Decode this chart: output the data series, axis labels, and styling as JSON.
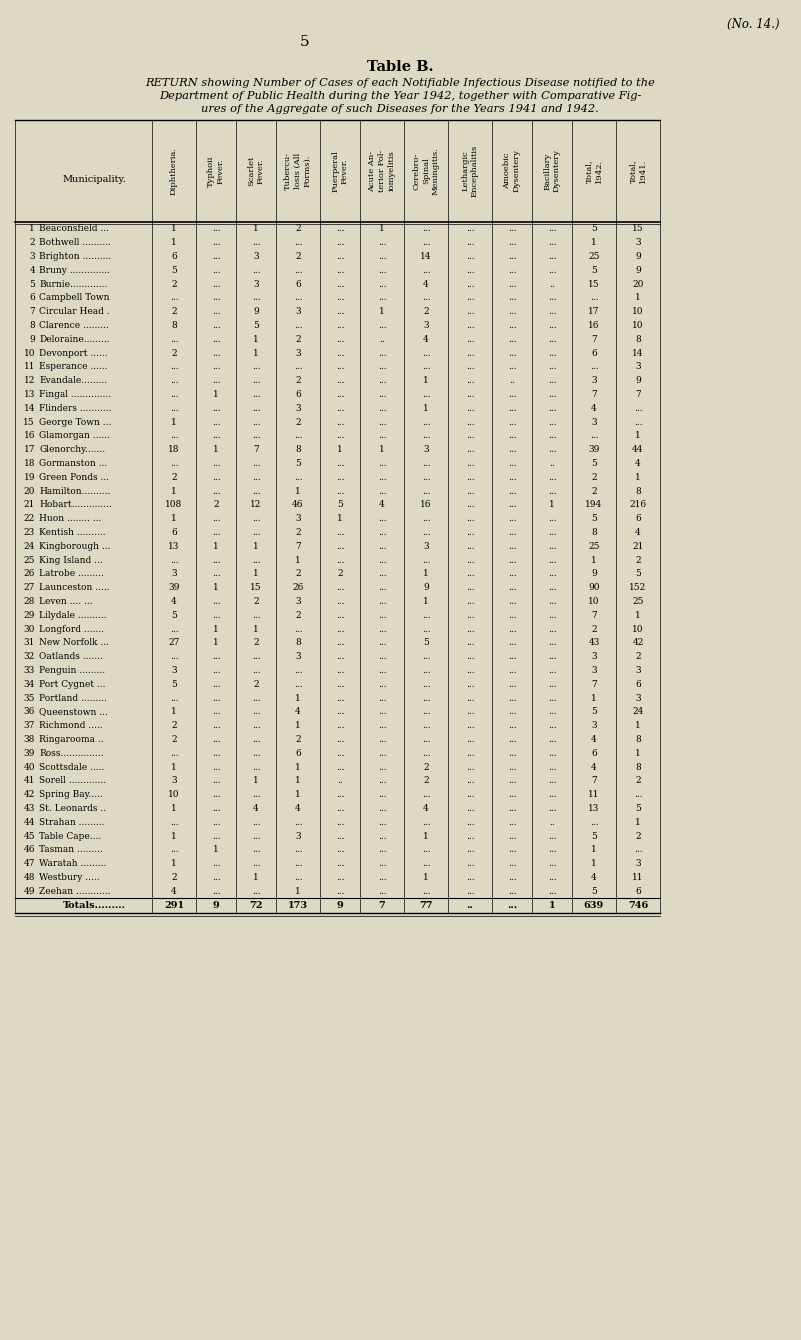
{
  "bg_color": "#ddd9c3",
  "title_page_num": "(No. 14.)",
  "page_num": "5",
  "table_title": "Table B.",
  "table_subtitle_line1": "RETURN showing Number of Cases of each Notifiable Infectious Disease notified to the",
  "table_subtitle_line2": "Department of Public Health during the Year 1942, together with Comparative Fig-",
  "table_subtitle_line3": "ures of the Aggregate of such Diseases for the Years 1941 and 1942.",
  "col_headers": [
    "Diphtheria.",
    "Typhoii\nFever.",
    "Scarlet\nFever.",
    "Tubercu-\nlosis (All\nForms).",
    "Puerperal\nFever.",
    "Acute An-\nterior Pol-\niomyelitis",
    "Cerebro-\nSpinal\nMeningitis.",
    "Lethargic\nEncephalitis",
    "Amoebic\nDysentery",
    "Bacillary\nDysentery",
    "Total,\n1942.",
    "Total,\n1941."
  ],
  "rows": [
    {
      "num": "1",
      "name": "Beaconsfield ...",
      "d": "1",
      "t": "...",
      "s": "1",
      "tb": "2",
      "p": "...",
      "ap": "1",
      "c": "...",
      "le": "...",
      "ad": "...",
      "bd": "...",
      "tot42": "5",
      "tot41": "15"
    },
    {
      "num": "2",
      "name": "Bothwell ..........",
      "d": "1",
      "t": "...",
      "s": "...",
      "tb": "...",
      "p": "...",
      "ap": "...",
      "c": "...",
      "le": "...",
      "ad": "...",
      "bd": "...",
      "tot42": "1",
      "tot41": "3"
    },
    {
      "num": "3",
      "name": "Brighton ..........",
      "d": "6",
      "t": "...",
      "s": "3",
      "tb": "2",
      "p": "...",
      "ap": "...",
      "c": "14",
      "le": "...",
      "ad": "...",
      "bd": "...",
      "tot42": "25",
      "tot41": "9"
    },
    {
      "num": "4",
      "name": "Bruny ..............",
      "d": "5",
      "t": "...",
      "s": "...",
      "tb": "...",
      "p": "...",
      "ap": "...",
      "c": "...",
      "le": "...",
      "ad": "...",
      "bd": "...",
      "tot42": "5",
      "tot41": "9"
    },
    {
      "num": "5",
      "name": "Burnie.............",
      "d": "2",
      "t": "...",
      "s": "3",
      "tb": "6",
      "p": "...",
      "ap": "...",
      "c": "4",
      "le": "...",
      "ad": "...",
      "bd": "..",
      "tot42": "15",
      "tot41": "20"
    },
    {
      "num": "6",
      "name": "Campbell Town",
      "d": "...",
      "t": "...",
      "s": "...",
      "tb": "...",
      "p": "...",
      "ap": "...",
      "c": "...",
      "le": "...",
      "ad": "...",
      "bd": "...",
      "tot42": "...",
      "tot41": "1"
    },
    {
      "num": "7",
      "name": "Circular Head .",
      "d": "2",
      "t": "...",
      "s": "9",
      "tb": "3",
      "p": "...",
      "ap": "1",
      "c": "2",
      "le": "...",
      "ad": "...",
      "bd": "...",
      "tot42": "17",
      "tot41": "10"
    },
    {
      "num": "8",
      "name": "Clarence .........",
      "d": "8",
      "t": "...",
      "s": "5",
      "tb": "...",
      "p": "...",
      "ap": "...",
      "c": "3",
      "le": "...",
      "ad": "...",
      "bd": "...",
      "tot42": "16",
      "tot41": "10"
    },
    {
      "num": "9",
      "name": "Deloraine.........",
      "d": "...",
      "t": "...",
      "s": "1",
      "tb": "2",
      "p": "...",
      "ap": "..",
      "c": "4",
      "le": "...",
      "ad": "...",
      "bd": "...",
      "tot42": "7",
      "tot41": "8"
    },
    {
      "num": "10",
      "name": "Devonport ......",
      "d": "2",
      "t": "...",
      "s": "1",
      "tb": "3",
      "p": "...",
      "ap": "...",
      "c": "...",
      "le": "...",
      "ad": "...",
      "bd": "...",
      "tot42": "6",
      "tot41": "14"
    },
    {
      "num": "11",
      "name": "Esperance ......",
      "d": "...",
      "t": "...",
      "s": "...",
      "tb": "...",
      "p": "...",
      "ap": "...",
      "c": "...",
      "le": "...",
      "ad": "...",
      "bd": "...",
      "tot42": "...",
      "tot41": "3"
    },
    {
      "num": "12",
      "name": "Evandale.........",
      "d": "...",
      "t": "...",
      "s": "...",
      "tb": "2",
      "p": "...",
      "ap": "...",
      "c": "1",
      "le": "...",
      "ad": "..",
      "bd": "...",
      "tot42": "3",
      "tot41": "9"
    },
    {
      "num": "13",
      "name": "Fingal ..............",
      "d": "...",
      "t": "1",
      "s": "...",
      "tb": "6",
      "p": "...",
      "ap": "...",
      "c": "...",
      "le": "...",
      "ad": "...",
      "bd": "...",
      "tot42": "7",
      "tot41": "7"
    },
    {
      "num": "14",
      "name": "Flinders ...........",
      "d": "...",
      "t": "...",
      "s": "...",
      "tb": "3",
      "p": "...",
      "ap": "...",
      "c": "1",
      "le": "...",
      "ad": "...",
      "bd": "...",
      "tot42": "4",
      "tot41": "..."
    },
    {
      "num": "15",
      "name": "George Town ...",
      "d": "1",
      "t": "...",
      "s": "...",
      "tb": "2",
      "p": "...",
      "ap": "...",
      "c": "...",
      "le": "...",
      "ad": "...",
      "bd": "...",
      "tot42": "3",
      "tot41": "..."
    },
    {
      "num": "16",
      "name": "Glamorgan ......",
      "d": "...",
      "t": "...",
      "s": "...",
      "tb": "...",
      "p": "...",
      "ap": "...",
      "c": "...",
      "le": "...",
      "ad": "...",
      "bd": "...",
      "tot42": "...",
      "tot41": "1"
    },
    {
      "num": "17",
      "name": "Glenorchy.......",
      "d": "18",
      "t": "1",
      "s": "7",
      "tb": "8",
      "p": "1",
      "ap": "1",
      "c": "3",
      "le": "...",
      "ad": "...",
      "bd": "...",
      "tot42": "39",
      "tot41": "44"
    },
    {
      "num": "18",
      "name": "Gormanston ...",
      "d": "...",
      "t": "...",
      "s": "...",
      "tb": "5",
      "p": "...",
      "ap": "...",
      "c": "...",
      "le": "...",
      "ad": "...",
      "bd": "..",
      "tot42": "5",
      "tot41": "4"
    },
    {
      "num": "19",
      "name": "Green Ponds ...",
      "d": "2",
      "t": "...",
      "s": "...",
      "tb": "...",
      "p": "...",
      "ap": "...",
      "c": "...",
      "le": "...",
      "ad": "...",
      "bd": "...",
      "tot42": "2",
      "tot41": "1"
    },
    {
      "num": "20",
      "name": "Hamilton..........",
      "d": "1",
      "t": "...",
      "s": "...",
      "tb": "1",
      "p": "...",
      "ap": "...",
      "c": "...",
      "le": "...",
      "ad": "...",
      "bd": "...",
      "tot42": "2",
      "tot41": "8"
    },
    {
      "num": "21",
      "name": "Hobart..............",
      "d": "108",
      "t": "2",
      "s": "12",
      "tb": "46",
      "p": "5",
      "ap": "4",
      "c": "16",
      "le": "...",
      "ad": "...",
      "bd": "1",
      "tot42": "194",
      "tot41": "216"
    },
    {
      "num": "22",
      "name": "Huon ........ ...",
      "d": "1",
      "t": "...",
      "s": "...",
      "tb": "3",
      "p": "1",
      "ap": "...",
      "c": "...",
      "le": "...",
      "ad": "...",
      "bd": "...",
      "tot42": "5",
      "tot41": "6"
    },
    {
      "num": "23",
      "name": "Kentish ..........",
      "d": "6",
      "t": "...",
      "s": "...",
      "tb": "2",
      "p": "...",
      "ap": "...",
      "c": "...",
      "le": "...",
      "ad": "...",
      "bd": "...",
      "tot42": "8",
      "tot41": "4"
    },
    {
      "num": "24",
      "name": "Kingborough ...",
      "d": "13",
      "t": "1",
      "s": "1",
      "tb": "7",
      "p": "...",
      "ap": "...",
      "c": "3",
      "le": "...",
      "ad": "...",
      "bd": "...",
      "tot42": "25",
      "tot41": "21"
    },
    {
      "num": "25",
      "name": "King Island ...",
      "d": "...",
      "t": "...",
      "s": "...",
      "tb": "1",
      "p": "...",
      "ap": "...",
      "c": "...",
      "le": "...",
      "ad": "...",
      "bd": "...",
      "tot42": "1",
      "tot41": "2"
    },
    {
      "num": "26",
      "name": "Latrobe .........",
      "d": "3",
      "t": "...",
      "s": "1",
      "tb": "2",
      "p": "2",
      "ap": "...",
      "c": "1",
      "le": "...",
      "ad": "...",
      "bd": "...",
      "tot42": "9",
      "tot41": "5"
    },
    {
      "num": "27",
      "name": "Launceston .....",
      "d": "39",
      "t": "1",
      "s": "15",
      "tb": "26",
      "p": "...",
      "ap": "...",
      "c": "9",
      "le": "...",
      "ad": "...",
      "bd": "...",
      "tot42": "90",
      "tot41": "152"
    },
    {
      "num": "28",
      "name": "Leven .... ...",
      "d": "4",
      "t": "...",
      "s": "2",
      "tb": "3",
      "p": "...",
      "ap": "...",
      "c": "1",
      "le": "...",
      "ad": "...",
      "bd": "...",
      "tot42": "10",
      "tot41": "25"
    },
    {
      "num": "29",
      "name": "Lilydale ..........",
      "d": "5",
      "t": "...",
      "s": "...",
      "tb": "2",
      "p": "...",
      "ap": "...",
      "c": "...",
      "le": "...",
      "ad": "...",
      "bd": "...",
      "tot42": "7",
      "tot41": "1"
    },
    {
      "num": "30",
      "name": "Longford .......",
      "d": "...",
      "t": "1",
      "s": "1",
      "tb": "...",
      "p": "...",
      "ap": "...",
      "c": "...",
      "le": "...",
      "ad": "...",
      "bd": "...",
      "tot42": "2",
      "tot41": "10"
    },
    {
      "num": "31",
      "name": "New Norfolk ...",
      "d": "27",
      "t": "1",
      "s": "2",
      "tb": "8",
      "p": "...",
      "ap": "...",
      "c": "5",
      "le": "...",
      "ad": "...",
      "bd": "...",
      "tot42": "43",
      "tot41": "42"
    },
    {
      "num": "32",
      "name": "Oatlands .......",
      "d": "...",
      "t": "...",
      "s": "...",
      "tb": "3",
      "p": "...",
      "ap": "...",
      "c": "...",
      "le": "...",
      "ad": "...",
      "bd": "...",
      "tot42": "3",
      "tot41": "2"
    },
    {
      "num": "33",
      "name": "Penguin .........",
      "d": "3",
      "t": "...",
      "s": "...",
      "tb": "...",
      "p": "...",
      "ap": "...",
      "c": "...",
      "le": "...",
      "ad": "...",
      "bd": "...",
      "tot42": "3",
      "tot41": "3"
    },
    {
      "num": "34",
      "name": "Port Cygnet ...",
      "d": "5",
      "t": "...",
      "s": "2",
      "tb": "...",
      "p": "...",
      "ap": "...",
      "c": "...",
      "le": "...",
      "ad": "...",
      "bd": "...",
      "tot42": "7",
      "tot41": "6"
    },
    {
      "num": "35",
      "name": "Portland .........",
      "d": "...",
      "t": "...",
      "s": "...",
      "tb": "1",
      "p": "...",
      "ap": "...",
      "c": "...",
      "le": "...",
      "ad": "...",
      "bd": "...",
      "tot42": "1",
      "tot41": "3"
    },
    {
      "num": "36",
      "name": "Queenstown ...",
      "d": "1",
      "t": "...",
      "s": "...",
      "tb": "4",
      "p": "...",
      "ap": "...",
      "c": "...",
      "le": "...",
      "ad": "...",
      "bd": "...",
      "tot42": "5",
      "tot41": "24"
    },
    {
      "num": "37",
      "name": "Richmond .....",
      "d": "2",
      "t": "...",
      "s": "...",
      "tb": "1",
      "p": "...",
      "ap": "...",
      "c": "...",
      "le": "...",
      "ad": "...",
      "bd": "...",
      "tot42": "3",
      "tot41": "1"
    },
    {
      "num": "38",
      "name": "Ringarooma ..",
      "d": "2",
      "t": "...",
      "s": "...",
      "tb": "2",
      "p": "...",
      "ap": "...",
      "c": "...",
      "le": "...",
      "ad": "...",
      "bd": "...",
      "tot42": "4",
      "tot41": "8"
    },
    {
      "num": "39",
      "name": "Ross...............",
      "d": "...",
      "t": "...",
      "s": "...",
      "tb": "6",
      "p": "...",
      "ap": "...",
      "c": "...",
      "le": "...",
      "ad": "...",
      "bd": "...",
      "tot42": "6",
      "tot41": "1"
    },
    {
      "num": "40",
      "name": "Scottsdale .....",
      "d": "1",
      "t": "...",
      "s": "...",
      "tb": "1",
      "p": "...",
      "ap": "...",
      "c": "2",
      "le": "...",
      "ad": "...",
      "bd": "...",
      "tot42": "4",
      "tot41": "8"
    },
    {
      "num": "41",
      "name": "Sorell .............",
      "d": "3",
      "t": "...",
      "s": "1",
      "tb": "1",
      "p": "..",
      "ap": "...",
      "c": "2",
      "le": "...",
      "ad": "...",
      "bd": "...",
      "tot42": "7",
      "tot41": "2"
    },
    {
      "num": "42",
      "name": "Spring Bay.....",
      "d": "10",
      "t": "...",
      "s": "...",
      "tb": "1",
      "p": "...",
      "ap": "...",
      "c": "...",
      "le": "...",
      "ad": "...",
      "bd": "...",
      "tot42": "11",
      "tot41": "..."
    },
    {
      "num": "43",
      "name": "St. Leonards ..",
      "d": "1",
      "t": "...",
      "s": "4",
      "tb": "4",
      "p": "...",
      "ap": "...",
      "c": "4",
      "le": "...",
      "ad": "...",
      "bd": "...",
      "tot42": "13",
      "tot41": "5"
    },
    {
      "num": "44",
      "name": "Strahan .........",
      "d": "...",
      "t": "...",
      "s": "...",
      "tb": "...",
      "p": "...",
      "ap": "...",
      "c": "...",
      "le": "...",
      "ad": "...",
      "bd": "..",
      "tot42": "...",
      "tot41": "1"
    },
    {
      "num": "45",
      "name": "Table Cape....",
      "d": "1",
      "t": "...",
      "s": "...",
      "tb": "3",
      "p": "...",
      "ap": "...",
      "c": "1",
      "le": "...",
      "ad": "...",
      "bd": "...",
      "tot42": "5",
      "tot41": "2"
    },
    {
      "num": "46",
      "name": "Tasman .........",
      "d": "...",
      "t": "1",
      "s": "...",
      "tb": "...",
      "p": "...",
      "ap": "...",
      "c": "...",
      "le": "...",
      "ad": "...",
      "bd": "...",
      "tot42": "1",
      "tot41": "..."
    },
    {
      "num": "47",
      "name": "Waratah .........",
      "d": "1",
      "t": "...",
      "s": "...",
      "tb": "...",
      "p": "...",
      "ap": "...",
      "c": "...",
      "le": "...",
      "ad": "...",
      "bd": "...",
      "tot42": "1",
      "tot41": "3"
    },
    {
      "num": "48",
      "name": "Westbury .....",
      "d": "2",
      "t": "...",
      "s": "1",
      "tb": "...",
      "p": "...",
      "ap": "...",
      "c": "1",
      "le": "...",
      "ad": "...",
      "bd": "...",
      "tot42": "4",
      "tot41": "11"
    },
    {
      "num": "49",
      "name": "Zeehan ............",
      "d": "4",
      "t": "...",
      "s": "...",
      "tb": "1",
      "p": "...",
      "ap": "...",
      "c": "...",
      "le": "...",
      "ad": "...",
      "bd": "...",
      "tot42": "5",
      "tot41": "6"
    }
  ],
  "totals": {
    "num": "",
    "name": "Totals.........",
    "d": "291",
    "t": "9",
    "s": "72",
    "tb": "173",
    "p": "9",
    "ap": "7",
    "c": "77",
    "le": "..",
    "ad": "...",
    "bd": "1",
    "tot42": "639",
    "tot41": "746"
  }
}
